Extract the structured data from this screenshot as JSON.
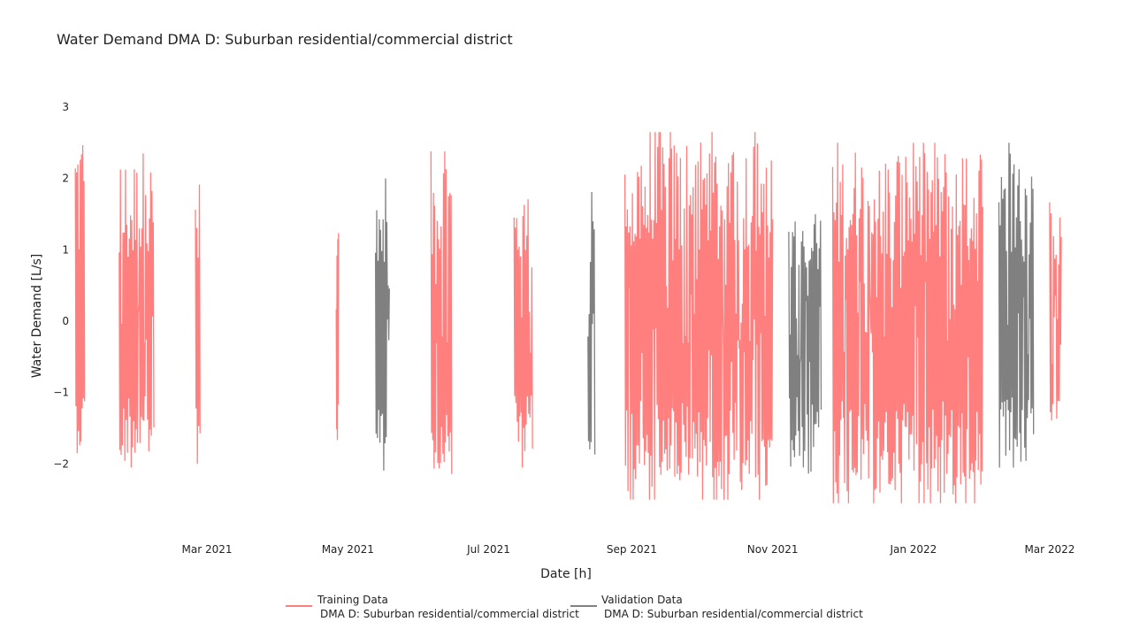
{
  "chart_data": {
    "type": "line",
    "title": "Water Demand DMA D: Suburban residential/commercial district",
    "xlabel": "Date [h]",
    "ylabel": "Water Demand [L/s]",
    "x_axis_type": "date",
    "xlim": [
      "2021-01-01",
      "2022-03-06"
    ],
    "ylim": [
      -2.85,
      3.05
    ],
    "x_ticks": [
      {
        "date": "2021-03-01",
        "label": "Mar 2021"
      },
      {
        "date": "2021-05-01",
        "label": "May 2021"
      },
      {
        "date": "2021-07-01",
        "label": "Jul 2021"
      },
      {
        "date": "2021-09-01",
        "label": "Sep 2021"
      },
      {
        "date": "2021-11-01",
        "label": "Nov 2021"
      },
      {
        "date": "2022-01-01",
        "label": "Jan 2022"
      },
      {
        "date": "2022-03-01",
        "label": "Mar 2022"
      }
    ],
    "y_ticks": [
      {
        "value": 3,
        "label": "3"
      },
      {
        "value": 2,
        "label": "2"
      },
      {
        "value": 1,
        "label": "1"
      },
      {
        "value": 0,
        "label": "0"
      },
      {
        "value": -1,
        "label": "−1"
      },
      {
        "value": -2,
        "label": "−2"
      }
    ],
    "grid": false,
    "legend_position": "bottom-center",
    "series": [
      {
        "name": "Training Data",
        "sublabel": "DMA D: Suburban residential/commercial district",
        "color": "#ff7f7f",
        "segments": [
          {
            "start": "2021-01-03",
            "end": "2021-01-07",
            "min": -1.85,
            "max": 2.95
          },
          {
            "start": "2021-01-22",
            "end": "2021-02-06",
            "min": -2.05,
            "max": 2.35
          },
          {
            "start": "2021-02-24",
            "end": "2021-02-26",
            "min": -2.0,
            "max": 2.05
          },
          {
            "start": "2021-04-26",
            "end": "2021-04-27",
            "min": -1.85,
            "max": 1.4
          },
          {
            "start": "2021-06-06",
            "end": "2021-06-15",
            "min": -2.25,
            "max": 2.38
          },
          {
            "start": "2021-07-12",
            "end": "2021-07-20",
            "min": -2.05,
            "max": 1.85
          },
          {
            "start": "2021-08-29",
            "end": "2021-11-01",
            "min": -2.5,
            "max": 2.65
          },
          {
            "start": "2021-11-27",
            "end": "2022-01-31",
            "min": -2.55,
            "max": 2.5
          },
          {
            "start": "2022-03-01",
            "end": "2022-03-06",
            "min": -1.45,
            "max": 1.8
          }
        ]
      },
      {
        "name": "Validation Data",
        "sublabel": "DMA D: Suburban residential/commercial district",
        "color": "#808080",
        "segments": [
          {
            "start": "2021-05-13",
            "end": "2021-05-19",
            "min": -2.25,
            "max": 2.0
          },
          {
            "start": "2021-08-13",
            "end": "2021-08-16",
            "min": -2.05,
            "max": 1.95
          },
          {
            "start": "2021-11-08",
            "end": "2021-11-22",
            "min": -2.25,
            "max": 1.5
          },
          {
            "start": "2022-02-07",
            "end": "2022-02-22",
            "min": -2.05,
            "max": 2.5
          }
        ]
      }
    ]
  }
}
